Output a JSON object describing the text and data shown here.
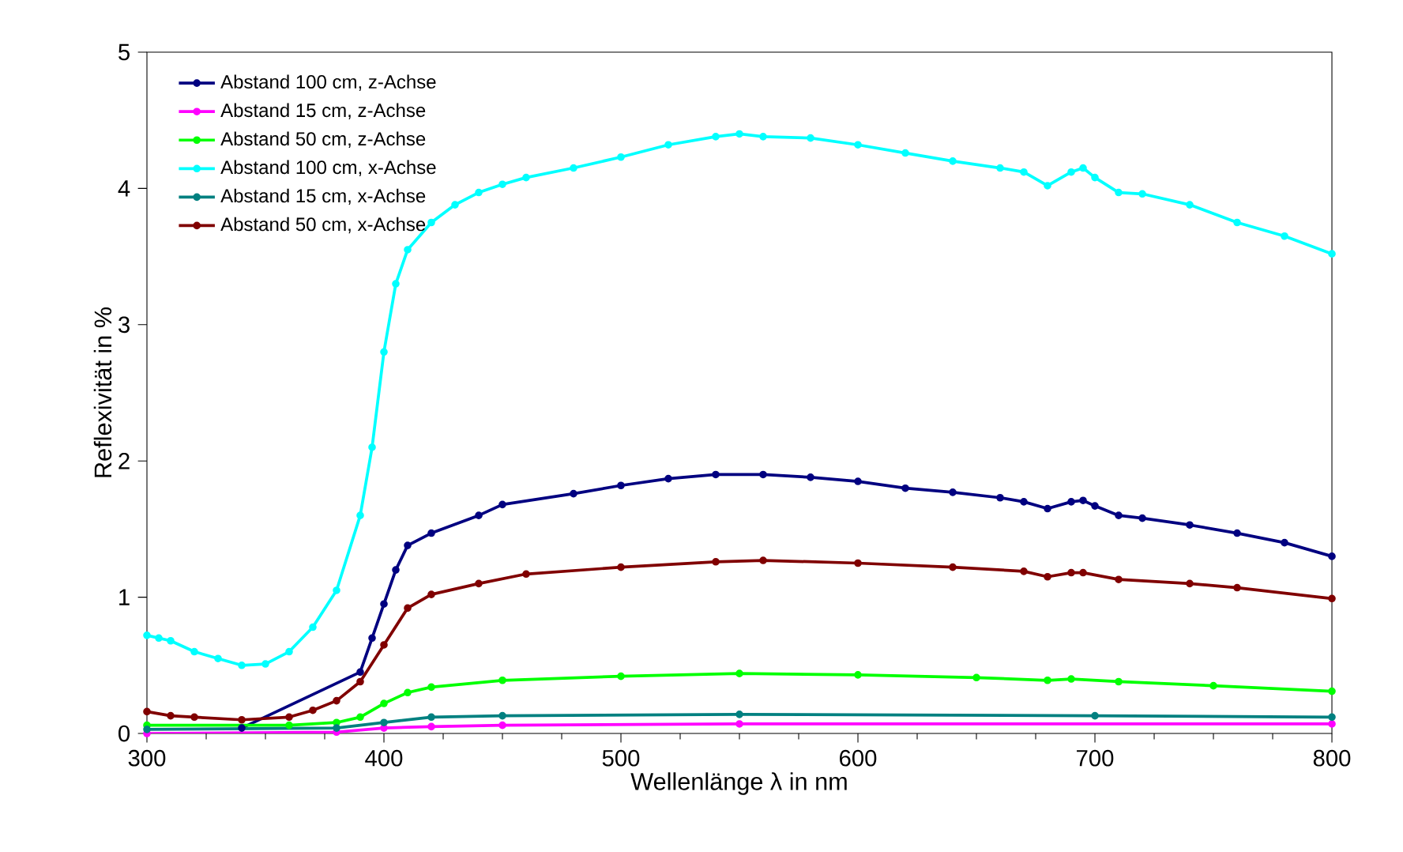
{
  "chart_data": {
    "type": "line",
    "xlabel": "Wellenlänge λ in nm",
    "ylabel": "Reflexivität in %",
    "xlim": [
      300,
      800
    ],
    "ylim": [
      0,
      5
    ],
    "xticks": [
      300,
      400,
      500,
      600,
      700,
      800
    ],
    "yticks": [
      0,
      1,
      2,
      3,
      4,
      5
    ],
    "grid": false,
    "legend": "top left",
    "marker": "circle",
    "line_style": "solid",
    "series": [
      {
        "name": "Abstand 100 cm, z-Achse",
        "color": "#000080",
        "x": [
          340,
          390,
          395,
          400,
          405,
          410,
          420,
          440,
          450,
          480,
          500,
          520,
          540,
          560,
          580,
          600,
          620,
          640,
          660,
          670,
          680,
          690,
          695,
          700,
          710,
          720,
          740,
          760,
          780,
          800
        ],
        "values": [
          0.04,
          0.45,
          0.7,
          0.95,
          1.2,
          1.38,
          1.47,
          1.6,
          1.68,
          1.76,
          1.82,
          1.87,
          1.9,
          1.9,
          1.88,
          1.85,
          1.8,
          1.77,
          1.73,
          1.7,
          1.65,
          1.7,
          1.71,
          1.67,
          1.6,
          1.58,
          1.53,
          1.47,
          1.4,
          1.3
        ]
      },
      {
        "name": "Abstand 15 cm, z-Achse",
        "color": "#ff00ff",
        "x": [
          300,
          380,
          400,
          420,
          450,
          550,
          800
        ],
        "values": [
          0.0,
          0.01,
          0.04,
          0.05,
          0.06,
          0.07,
          0.07
        ]
      },
      {
        "name": "Abstand 50 cm, z-Achse",
        "color": "#00ff00",
        "x": [
          300,
          360,
          380,
          390,
          400,
          410,
          420,
          450,
          500,
          550,
          600,
          650,
          680,
          690,
          710,
          750,
          800
        ],
        "values": [
          0.06,
          0.06,
          0.08,
          0.12,
          0.22,
          0.3,
          0.34,
          0.39,
          0.42,
          0.44,
          0.43,
          0.41,
          0.39,
          0.4,
          0.38,
          0.35,
          0.31
        ]
      },
      {
        "name": "Abstand 100 cm, x-Achse",
        "color": "#00ffff",
        "x": [
          300,
          305,
          310,
          320,
          330,
          340,
          350,
          360,
          370,
          380,
          390,
          395,
          400,
          405,
          410,
          420,
          430,
          440,
          450,
          460,
          480,
          500,
          520,
          540,
          550,
          560,
          580,
          600,
          620,
          640,
          660,
          670,
          680,
          690,
          695,
          700,
          710,
          720,
          740,
          760,
          780,
          800
        ],
        "values": [
          0.72,
          0.7,
          0.68,
          0.6,
          0.55,
          0.5,
          0.51,
          0.6,
          0.78,
          1.05,
          1.6,
          2.1,
          2.8,
          3.3,
          3.55,
          3.75,
          3.88,
          3.97,
          4.03,
          4.08,
          4.15,
          4.23,
          4.32,
          4.38,
          4.4,
          4.38,
          4.37,
          4.32,
          4.26,
          4.2,
          4.15,
          4.12,
          4.02,
          4.12,
          4.15,
          4.08,
          3.97,
          3.96,
          3.88,
          3.75,
          3.65,
          3.52
        ]
      },
      {
        "name": "Abstand 15 cm, x-Achse",
        "color": "#008080",
        "x": [
          300,
          380,
          400,
          420,
          450,
          550,
          700,
          800
        ],
        "values": [
          0.03,
          0.04,
          0.08,
          0.12,
          0.13,
          0.14,
          0.13,
          0.12
        ]
      },
      {
        "name": "Abstand 50 cm, x-Achse",
        "color": "#800000",
        "x": [
          300,
          310,
          320,
          340,
          360,
          370,
          380,
          390,
          400,
          410,
          420,
          440,
          460,
          500,
          540,
          560,
          600,
          640,
          670,
          680,
          690,
          695,
          710,
          740,
          760,
          800
        ],
        "values": [
          0.16,
          0.13,
          0.12,
          0.1,
          0.12,
          0.17,
          0.24,
          0.38,
          0.65,
          0.92,
          1.02,
          1.1,
          1.17,
          1.22,
          1.26,
          1.27,
          1.25,
          1.22,
          1.19,
          1.15,
          1.18,
          1.18,
          1.13,
          1.1,
          1.07,
          0.99
        ]
      }
    ]
  }
}
